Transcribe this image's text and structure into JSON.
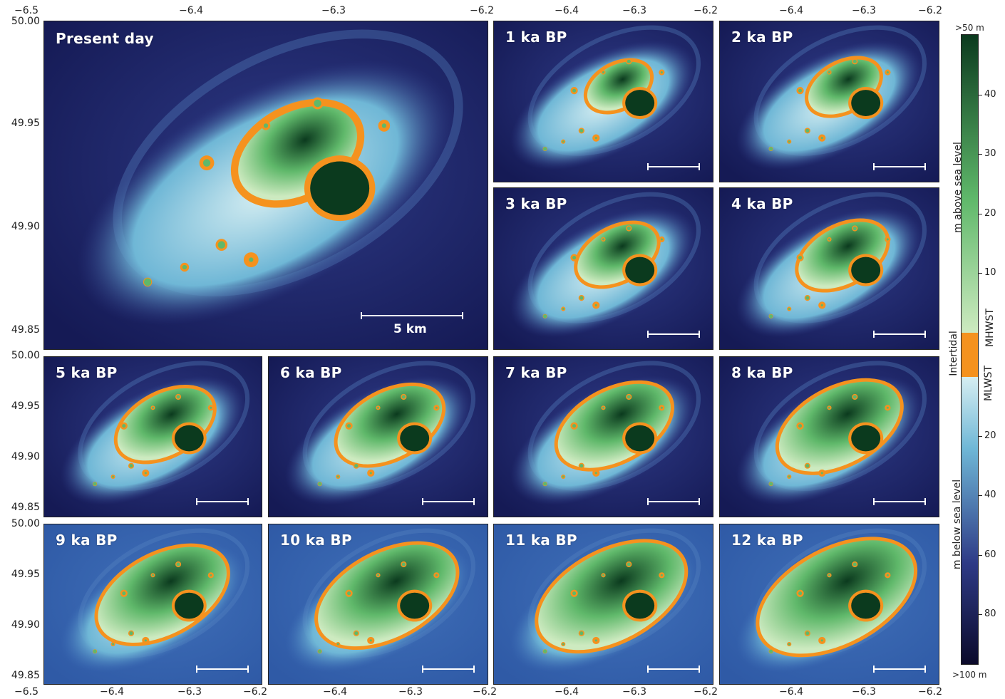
{
  "present_panel": {
    "label": "Present day",
    "scale_label": "5 km"
  },
  "panels": [
    {
      "label": "1 ka BP"
    },
    {
      "label": "2 ka BP"
    },
    {
      "label": "3 ka BP"
    },
    {
      "label": "4 ka BP"
    },
    {
      "label": "5 ka BP"
    },
    {
      "label": "6 ka BP"
    },
    {
      "label": "7 ka BP"
    },
    {
      "label": "8 ka BP"
    },
    {
      "label": "9 ka BP"
    },
    {
      "label": "10 ka BP"
    },
    {
      "label": "11 ka BP"
    },
    {
      "label": "12 ka BP"
    }
  ],
  "axes": {
    "x_ticks": [
      "−6.5",
      "−6.4",
      "−6.3",
      "−6.2"
    ],
    "x_ticks_short": [
      "−6.4",
      "−6.3",
      "−6.2"
    ],
    "y_ticks": [
      "50.00",
      "49.95",
      "49.90",
      "49.85"
    ]
  },
  "colorbar": {
    "top_label": ">50 m",
    "bottom_label": ">100 m",
    "above_label": "m above sea level",
    "below_label": "m below sea level",
    "intertidal_label": "Intertidal",
    "mhwst_label": "MHWST",
    "mlwst_label": "MLWST",
    "above_ticks": [
      "40",
      "30",
      "20",
      "10"
    ],
    "below_ticks": [
      "20",
      "40",
      "60",
      "80"
    ],
    "colors": {
      "deep": "#0b0a2a",
      "deep_mid": "#2e3a86",
      "shallow": "#6fb7d6",
      "near_surface": "#d6eef2",
      "intertidal": "#f5921e",
      "low_land": "#cdeac0",
      "mid_land": "#5fb86a",
      "high_land": "#0b3a1e"
    }
  }
}
